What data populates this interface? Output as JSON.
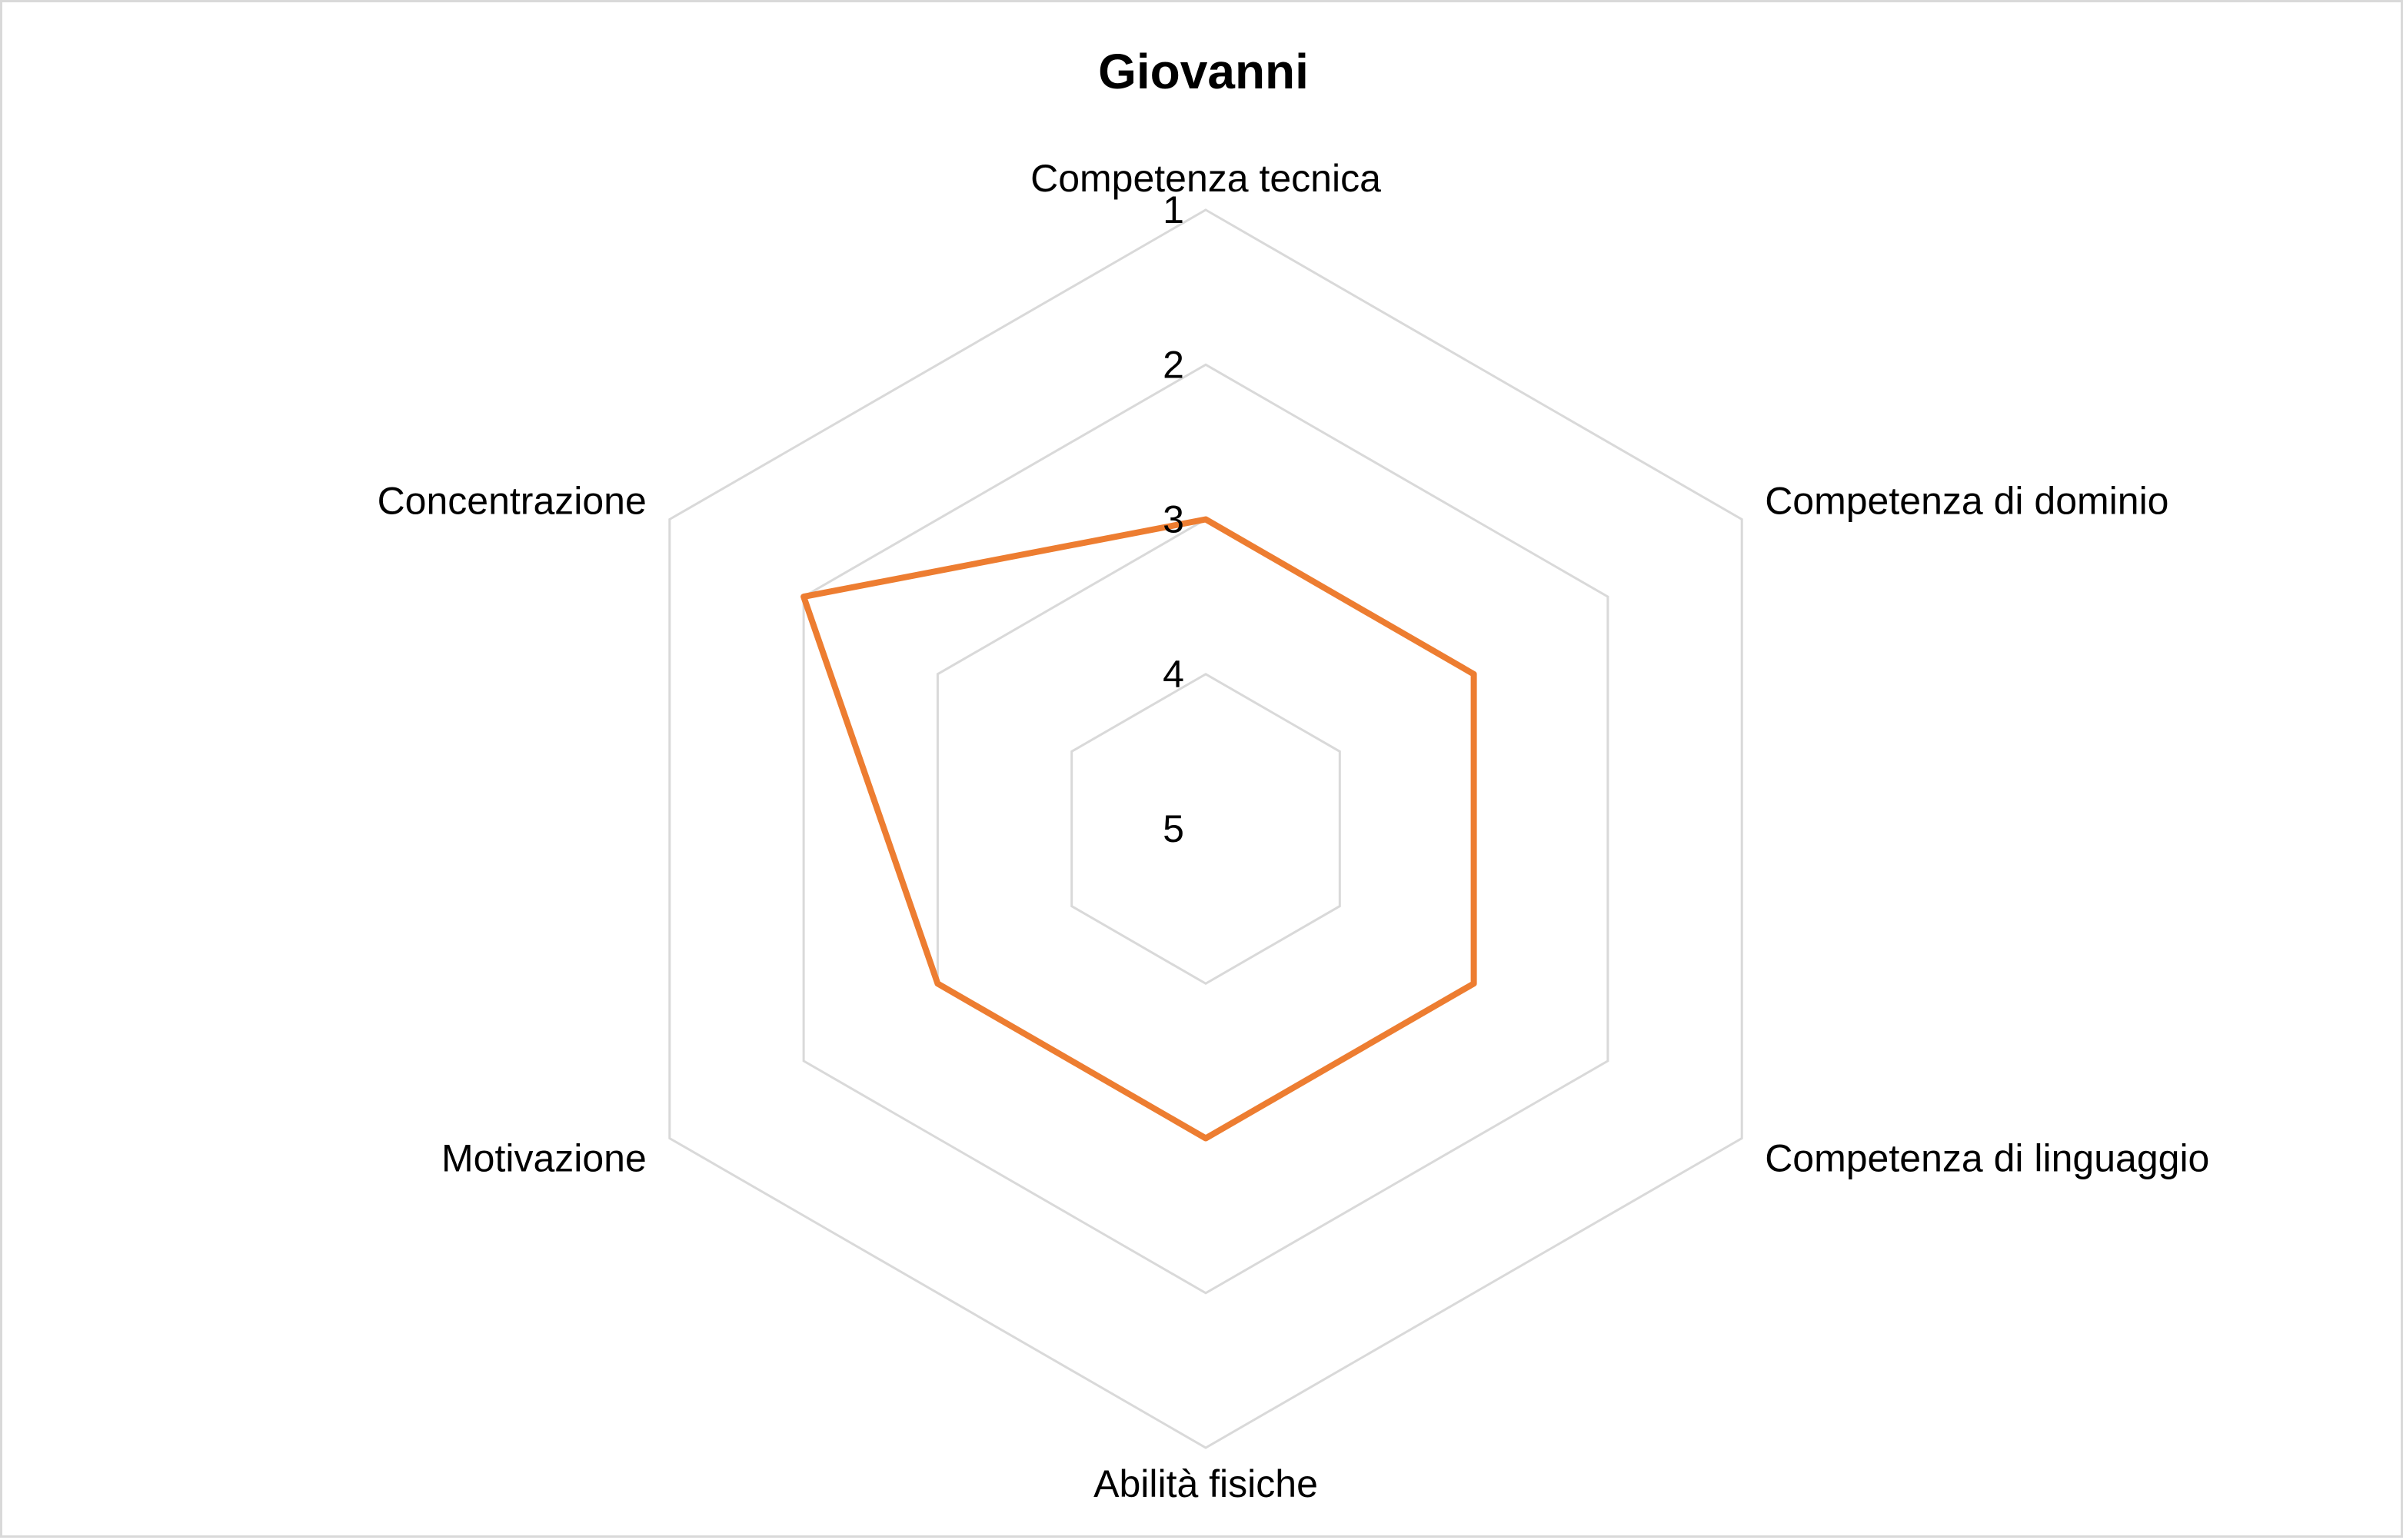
{
  "chart_data": {
    "type": "radar",
    "title": "Giovanni",
    "categories": [
      "Competenza tecnica",
      "Competenza di dominio",
      "Competenza di linguaggio",
      "Abilità fisiche",
      "Motivazione",
      "Concentrazione"
    ],
    "axis": {
      "ticks": [
        1,
        2,
        3,
        4,
        5
      ],
      "range": [
        1,
        5
      ],
      "reversed": true,
      "grid": true
    },
    "series": [
      {
        "values": [
          3,
          3,
          3,
          3,
          3,
          2
        ],
        "color": "#ed7d31"
      }
    ],
    "legend": "none"
  }
}
